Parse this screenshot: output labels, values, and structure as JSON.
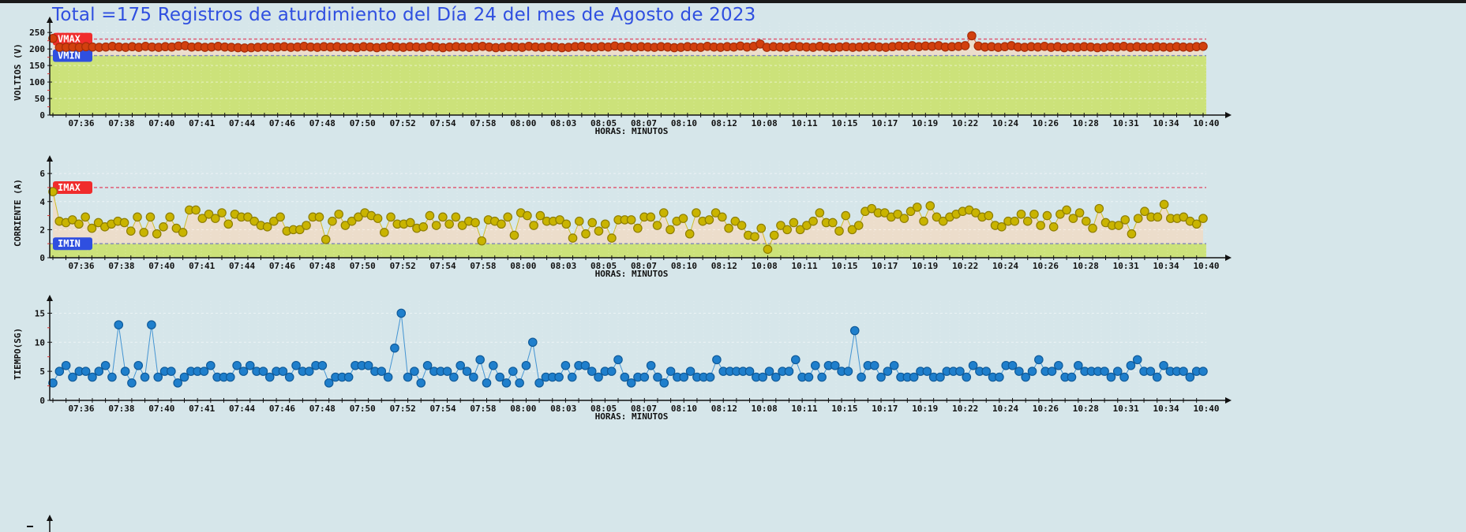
{
  "title": "Total =175 Registros de aturdimiento del Día 24 del mes de Agosto de 2023",
  "colors": {
    "background": "#d6e6ea",
    "title": "#2f4fe0",
    "ok_band": "#cce27a",
    "mid_band": "#eddcc9",
    "voltage_series": "#d2400e",
    "current_series": "#c9b400",
    "time_series": "#1f7fcc",
    "max_badge": "#f02c2c",
    "min_badge": "#2f4fe0",
    "max_line": "#e0506a",
    "min_line": "#7f86b8"
  },
  "x_axis": {
    "label": "HORAS: MINUTOS",
    "ticks": [
      "07:36",
      "07:38",
      "07:40",
      "07:41",
      "07:44",
      "07:46",
      "07:48",
      "07:50",
      "07:52",
      "07:54",
      "07:58",
      "08:00",
      "08:03",
      "08:05",
      "08:07",
      "08:10",
      "08:12",
      "10:08",
      "10:11",
      "10:15",
      "10:17",
      "10:19",
      "10:22",
      "10:24",
      "10:26",
      "10:28",
      "10:31",
      "10:34",
      "10:40"
    ]
  },
  "chart_data": [
    {
      "type": "line",
      "title": "Voltios",
      "ylabel": "VOLTIOS (V)",
      "xlabel": "HORAS: MINUTOS",
      "yticks": [
        0,
        50,
        100,
        150,
        200,
        250
      ],
      "ylim": [
        0,
        260
      ],
      "max_label": "VMAX",
      "max_value": 230,
      "min_label": "VMIN",
      "min_value": 180,
      "n_points": 175,
      "values_summary": "~200-210 V throughout; first point 232 V; spike ~240 V near 10:15",
      "values": [
        232,
        205,
        205,
        206,
        205,
        207,
        206,
        205,
        206,
        208,
        206,
        205,
        207,
        205,
        208,
        206,
        205,
        207,
        206,
        209,
        210,
        206,
        207,
        205,
        206,
        208,
        206,
        205,
        204,
        203,
        204,
        205,
        206,
        205,
        206,
        207,
        205,
        206,
        208,
        206,
        205,
        207,
        206,
        207,
        205,
        206,
        204,
        207,
        206,
        204,
        206,
        208,
        206,
        205,
        207,
        206,
        205,
        208,
        206,
        204,
        206,
        207,
        206,
        205,
        207,
        208,
        206,
        204,
        205,
        207,
        206,
        205,
        208,
        206,
        205,
        207,
        206,
        204,
        205,
        207,
        208,
        206,
        205,
        207,
        206,
        209,
        206,
        208,
        205,
        207,
        206,
        205,
        207,
        206,
        204,
        205,
        207,
        206,
        205,
        208,
        206,
        205,
        207,
        206,
        209,
        206,
        208,
        215,
        205,
        207,
        206,
        205,
        209,
        207,
        206,
        205,
        208,
        206,
        204,
        206,
        207,
        205,
        206,
        207,
        208,
        206,
        205,
        207,
        209,
        208,
        210,
        207,
        209,
        208,
        210,
        206,
        207,
        208,
        210,
        240,
        209,
        206,
        207,
        205,
        207,
        210,
        206,
        205,
        207,
        206,
        208,
        205,
        207,
        204,
        206,
        205,
        207,
        206,
        204,
        205,
        207,
        206,
        208,
        205,
        207,
        206,
        205,
        207,
        206,
        205,
        207,
        206,
        205,
        207,
        208
      ]
    },
    {
      "type": "line",
      "title": "Corriente",
      "ylabel": "CORRIENTE (A)",
      "xlabel": "HORAS: MINUTOS",
      "yticks": [
        0,
        2,
        4,
        6
      ],
      "ylim": [
        0,
        6.4
      ],
      "max_label": "IMAX",
      "max_value": 5,
      "min_label": "IMIN",
      "min_value": 1,
      "n_points": 175,
      "values": [
        4.7,
        2.6,
        2.5,
        2.7,
        2.4,
        2.9,
        2.1,
        2.5,
        2.2,
        2.4,
        2.6,
        2.5,
        1.9,
        2.9,
        1.8,
        2.9,
        1.7,
        2.2,
        2.9,
        2.1,
        1.8,
        3.4,
        3.4,
        2.8,
        3.1,
        2.8,
        3.2,
        2.4,
        3.1,
        2.9,
        2.9,
        2.6,
        2.3,
        2.2,
        2.6,
        2.9,
        1.9,
        2.0,
        2.0,
        2.3,
        2.9,
        2.9,
        1.3,
        2.6,
        3.1,
        2.3,
        2.6,
        2.9,
        3.2,
        3.0,
        2.8,
        1.8,
        2.9,
        2.4,
        2.4,
        2.5,
        2.1,
        2.2,
        3.0,
        2.3,
        2.9,
        2.4,
        2.9,
        2.3,
        2.6,
        2.5,
        1.2,
        2.7,
        2.6,
        2.4,
        2.9,
        1.6,
        3.2,
        3.0,
        2.3,
        3.0,
        2.6,
        2.6,
        2.7,
        2.4,
        1.4,
        2.6,
        1.7,
        2.5,
        1.9,
        2.4,
        1.4,
        2.7,
        2.7,
        2.7,
        2.1,
        2.9,
        2.9,
        2.3,
        3.2,
        2.0,
        2.6,
        2.8,
        1.7,
        3.2,
        2.6,
        2.7,
        3.2,
        2.9,
        2.1,
        2.6,
        2.3,
        1.6,
        1.5,
        2.1,
        0.6,
        1.6,
        2.3,
        2.0,
        2.5,
        2.0,
        2.3,
        2.6,
        3.2,
        2.5,
        2.5,
        1.9,
        3.0,
        2.0,
        2.3,
        3.3,
        3.5,
        3.2,
        3.2,
        2.9,
        3.1,
        2.8,
        3.3,
        3.6,
        2.6,
        3.7,
        2.9,
        2.6,
        2.9,
        3.1,
        3.3,
        3.4,
        3.2,
        2.9,
        3.0,
        2.3,
        2.2,
        2.6,
        2.6,
        3.1,
        2.6,
        3.1,
        2.3,
        3.0,
        2.2,
        3.1,
        3.4,
        2.8,
        3.2,
        2.6,
        2.1,
        3.5,
        2.5,
        2.3,
        2.3,
        2.7,
        1.7,
        2.8,
        3.3,
        2.9,
        2.9,
        3.8,
        2.8,
        2.8,
        2.9,
        2.6,
        2.4,
        2.8
      ]
    },
    {
      "type": "line",
      "title": "Tiempo",
      "ylabel": "TIEMPO(SG)",
      "xlabel": "HORAS: MINUTOS",
      "yticks": [
        0,
        5,
        10,
        15
      ],
      "ylim": [
        0,
        16
      ],
      "n_points": 175,
      "values": [
        3,
        5,
        6,
        4,
        5,
        5,
        4,
        5,
        6,
        4,
        13,
        5,
        3,
        6,
        4,
        13,
        4,
        5,
        5,
        3,
        4,
        5,
        5,
        5,
        6,
        4,
        4,
        4,
        6,
        5,
        6,
        5,
        5,
        4,
        5,
        5,
        4,
        6,
        5,
        5,
        6,
        6,
        3,
        4,
        4,
        4,
        6,
        6,
        6,
        5,
        5,
        4,
        9,
        15,
        4,
        5,
        3,
        6,
        5,
        5,
        5,
        4,
        6,
        5,
        4,
        7,
        3,
        6,
        4,
        3,
        5,
        3,
        6,
        10,
        3,
        4,
        4,
        4,
        6,
        4,
        6,
        6,
        5,
        4,
        5,
        5,
        7,
        4,
        3,
        4,
        4,
        6,
        4,
        3,
        5,
        4,
        4,
        5,
        4,
        4,
        4,
        7,
        5,
        5,
        5,
        5,
        5,
        4,
        4,
        5,
        4,
        5,
        5,
        7,
        4,
        4,
        6,
        4,
        6,
        6,
        5,
        5,
        12,
        4,
        6,
        6,
        4,
        5,
        6,
        4,
        4,
        4,
        5,
        5,
        4,
        4,
        5,
        5,
        5,
        4,
        6,
        5,
        5,
        4,
        4,
        6,
        6,
        5,
        4,
        5,
        7,
        5,
        5,
        6,
        4,
        4,
        6,
        5,
        5,
        5,
        5,
        4,
        5,
        4,
        6,
        7,
        5,
        5,
        4,
        6,
        5,
        5,
        5,
        4,
        5,
        5
      ]
    }
  ]
}
